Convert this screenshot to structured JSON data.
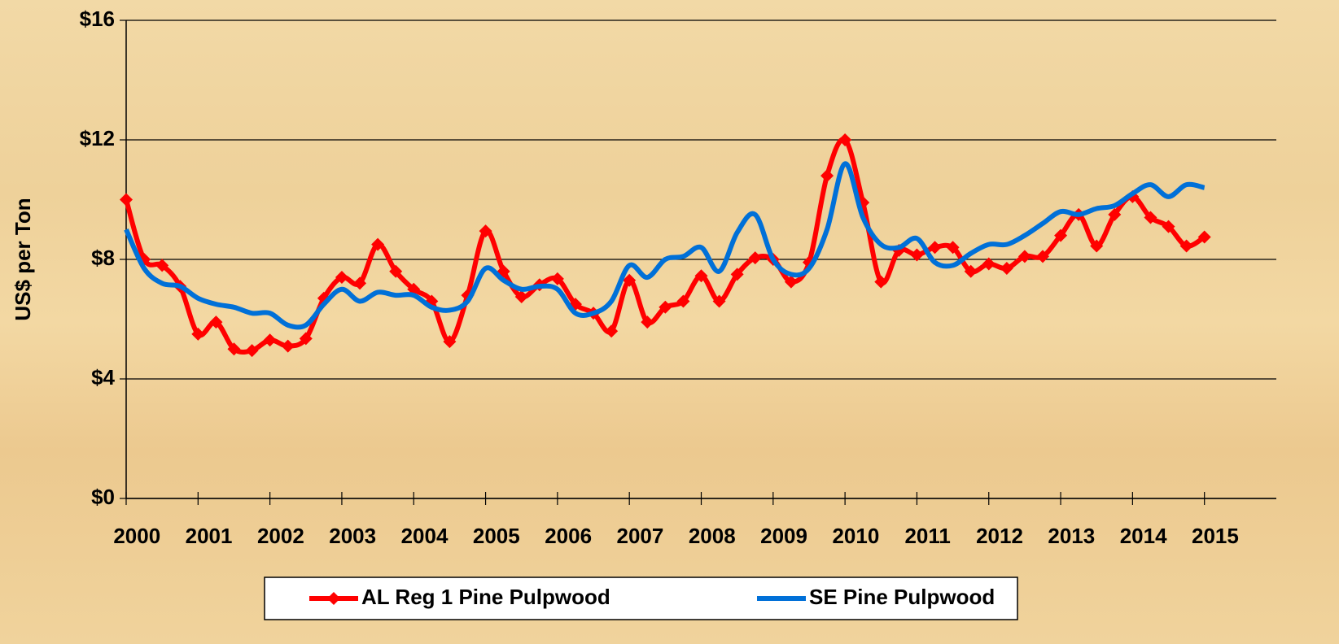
{
  "chart_data": {
    "type": "line",
    "y_label": "US$ per Ton",
    "x": [
      2000,
      2000.25,
      2000.5,
      2000.75,
      2001,
      2001.25,
      2001.5,
      2001.75,
      2002,
      2002.25,
      2002.5,
      2002.75,
      2003,
      2003.25,
      2003.5,
      2003.75,
      2004,
      2004.25,
      2004.5,
      2004.75,
      2005,
      2005.25,
      2005.5,
      2005.75,
      2006,
      2006.25,
      2006.5,
      2006.75,
      2007,
      2007.25,
      2007.5,
      2007.75,
      2008,
      2008.25,
      2008.5,
      2008.75,
      2009,
      2009.25,
      2009.5,
      2009.75,
      2010,
      2010.25,
      2010.5,
      2010.75,
      2011,
      2011.25,
      2011.5,
      2011.75,
      2012,
      2012.25,
      2012.5,
      2012.75,
      2013,
      2013.25,
      2013.5,
      2013.75,
      2014,
      2014.25,
      2014.5,
      2014.75,
      2015
    ],
    "series": [
      {
        "name": "AL Reg 1 Pine Pulpwood",
        "color": "#ff0000",
        "markers": true,
        "values": [
          10.0,
          8.0,
          7.8,
          7.1,
          5.5,
          5.9,
          5.0,
          4.95,
          5.3,
          5.1,
          5.35,
          6.7,
          7.4,
          7.2,
          8.5,
          7.6,
          7.0,
          6.6,
          5.25,
          6.8,
          8.95,
          7.6,
          6.75,
          7.15,
          7.35,
          6.5,
          6.2,
          5.6,
          7.3,
          5.9,
          6.4,
          6.6,
          7.45,
          6.6,
          7.5,
          8.05,
          8.0,
          7.25,
          7.9,
          10.8,
          12.0,
          9.9,
          7.25,
          8.3,
          8.15,
          8.4,
          8.4,
          7.6,
          7.85,
          7.7,
          8.1,
          8.1,
          8.8,
          9.5,
          8.45,
          9.5,
          10.1,
          9.4,
          9.1,
          8.45,
          8.75
        ]
      },
      {
        "name": "SE Pine Pulpwood",
        "color": "#0070d8",
        "markers": false,
        "values": [
          9.0,
          7.7,
          7.2,
          7.1,
          6.7,
          6.5,
          6.4,
          6.2,
          6.2,
          5.8,
          5.8,
          6.5,
          7.0,
          6.6,
          6.9,
          6.8,
          6.8,
          6.4,
          6.3,
          6.6,
          7.7,
          7.3,
          7.0,
          7.1,
          7.0,
          6.2,
          6.2,
          6.6,
          7.8,
          7.4,
          8.0,
          8.1,
          8.4,
          7.6,
          8.9,
          9.5,
          8.0,
          7.5,
          7.7,
          9.0,
          11.2,
          9.4,
          8.5,
          8.4,
          8.7,
          7.9,
          7.8,
          8.2,
          8.5,
          8.5,
          8.8,
          9.2,
          9.6,
          9.5,
          9.7,
          9.8,
          10.2,
          10.5,
          10.1,
          10.5,
          10.4
        ]
      }
    ],
    "xlim": [
      2000,
      2016
    ],
    "xticks": [
      2000,
      2001,
      2002,
      2003,
      2004,
      2005,
      2006,
      2007,
      2008,
      2009,
      2010,
      2011,
      2012,
      2013,
      2014,
      2015
    ],
    "ylim": [
      0,
      16
    ],
    "yticks": [
      {
        "value": 0,
        "label": "$0"
      },
      {
        "value": 4,
        "label": "$4"
      },
      {
        "value": 8,
        "label": "$8"
      },
      {
        "value": 12,
        "label": "$12"
      },
      {
        "value": 16,
        "label": "$16"
      }
    ],
    "grid": true,
    "legend": "bottom"
  }
}
